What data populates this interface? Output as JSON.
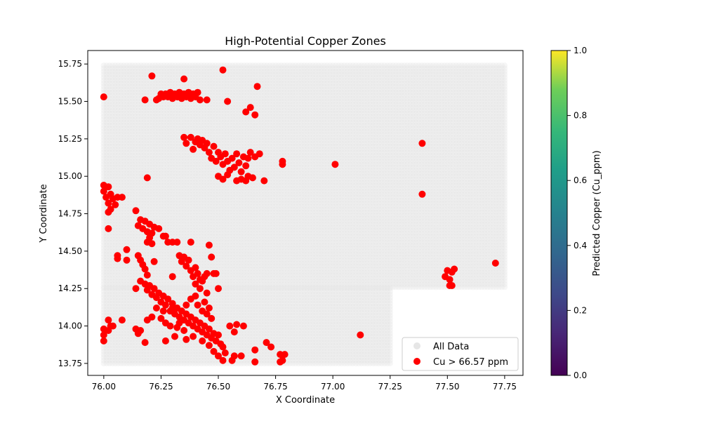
{
  "chart_data": {
    "type": "scatter",
    "title": "High-Potential Copper Zones",
    "xlabel": "X Coordinate",
    "ylabel": "Y Coordinate",
    "xlim": [
      75.93,
      77.83
    ],
    "ylim": [
      13.67,
      15.84
    ],
    "xticks": [
      "76.00",
      "76.25",
      "76.50",
      "76.75",
      "77.00",
      "77.25",
      "77.50",
      "77.75"
    ],
    "yticks": [
      "13.75",
      "14.00",
      "14.25",
      "14.50",
      "14.75",
      "15.00",
      "15.25",
      "15.50",
      "15.75"
    ],
    "grid": false,
    "legend": {
      "position": "lower-right",
      "entries": [
        {
          "label": "All Data",
          "color": "#e6e6e6"
        },
        {
          "label": "Cu > 66.57 ppm",
          "color": "#ff0000"
        }
      ]
    },
    "colorbar": {
      "label": "Predicted Copper (Cu_ppm)",
      "range": [
        0.0,
        1.0
      ],
      "ticks": [
        "0.0",
        "0.2",
        "0.4",
        "0.6",
        "0.8",
        "1.0"
      ],
      "colormap": "viridis"
    },
    "series": [
      {
        "name": "All Data",
        "color": "#e6e6e6",
        "kind": "grid",
        "regions": [
          {
            "x": [
              76.0,
              77.75
            ],
            "y": [
              14.26,
              15.75
            ]
          },
          {
            "x": [
              76.0,
              77.25
            ],
            "y": [
              13.75,
              14.26
            ]
          }
        ],
        "step": [
          0.0125,
          0.02
        ]
      },
      {
        "name": "Cu > 66.57 ppm",
        "color": "#ff0000",
        "kind": "points",
        "points": [
          [
            76.0,
            15.53
          ],
          [
            76.21,
            15.67
          ],
          [
            76.35,
            15.65
          ],
          [
            76.52,
            15.71
          ],
          [
            76.67,
            15.6
          ],
          [
            76.18,
            15.51
          ],
          [
            76.23,
            15.51
          ],
          [
            76.24,
            15.52
          ],
          [
            76.25,
            15.55
          ],
          [
            76.26,
            15.53
          ],
          [
            76.27,
            15.55
          ],
          [
            76.28,
            15.53
          ],
          [
            76.29,
            15.56
          ],
          [
            76.3,
            15.52
          ],
          [
            76.31,
            15.55
          ],
          [
            76.32,
            15.53
          ],
          [
            76.33,
            15.56
          ],
          [
            76.34,
            15.52
          ],
          [
            76.35,
            15.55
          ],
          [
            76.36,
            15.53
          ],
          [
            76.37,
            15.56
          ],
          [
            76.38,
            15.52
          ],
          [
            76.39,
            15.55
          ],
          [
            76.4,
            15.53
          ],
          [
            76.41,
            15.56
          ],
          [
            76.42,
            15.51
          ],
          [
            76.45,
            15.51
          ],
          [
            76.54,
            15.5
          ],
          [
            76.64,
            15.46
          ],
          [
            76.62,
            15.43
          ],
          [
            76.66,
            15.41
          ],
          [
            76.35,
            15.26
          ],
          [
            76.36,
            15.22
          ],
          [
            76.38,
            15.26
          ],
          [
            76.39,
            15.18
          ],
          [
            76.4,
            15.23
          ],
          [
            76.41,
            15.25
          ],
          [
            76.42,
            15.21
          ],
          [
            76.43,
            15.24
          ],
          [
            76.44,
            15.19
          ],
          [
            76.45,
            15.22
          ],
          [
            76.46,
            15.16
          ],
          [
            76.47,
            15.12
          ],
          [
            76.48,
            15.2
          ],
          [
            76.49,
            15.1
          ],
          [
            76.5,
            15.16
          ],
          [
            76.51,
            15.13
          ],
          [
            76.52,
            15.08
          ],
          [
            76.53,
            15.15
          ],
          [
            76.54,
            15.1
          ],
          [
            76.55,
            15.04
          ],
          [
            76.56,
            15.12
          ],
          [
            76.57,
            15.06
          ],
          [
            76.58,
            15.15
          ],
          [
            76.59,
            15.09
          ],
          [
            76.6,
            15.03
          ],
          [
            76.61,
            15.13
          ],
          [
            76.62,
            15.07
          ],
          [
            76.63,
            15.12
          ],
          [
            76.64,
            15.16
          ],
          [
            76.66,
            15.13
          ],
          [
            76.68,
            15.15
          ],
          [
            76.5,
            15.0
          ],
          [
            76.52,
            14.98
          ],
          [
            76.54,
            15.01
          ],
          [
            76.58,
            14.97
          ],
          [
            76.6,
            14.98
          ],
          [
            76.62,
            14.97
          ],
          [
            76.63,
            15.0
          ],
          [
            76.65,
            14.99
          ],
          [
            76.7,
            14.97
          ],
          [
            76.78,
            15.08
          ],
          [
            76.78,
            15.1
          ],
          [
            77.01,
            15.08
          ],
          [
            77.39,
            15.22
          ],
          [
            77.39,
            14.88
          ],
          [
            76.19,
            14.99
          ],
          [
            76.0,
            14.94
          ],
          [
            76.0,
            14.9
          ],
          [
            76.01,
            14.86
          ],
          [
            76.02,
            14.93
          ],
          [
            76.03,
            14.88
          ],
          [
            76.02,
            14.82
          ],
          [
            76.04,
            14.85
          ],
          [
            76.05,
            14.81
          ],
          [
            76.03,
            14.78
          ],
          [
            76.06,
            14.86
          ],
          [
            76.08,
            14.86
          ],
          [
            76.02,
            14.76
          ],
          [
            76.02,
            14.65
          ],
          [
            76.14,
            14.77
          ],
          [
            76.15,
            14.67
          ],
          [
            76.16,
            14.71
          ],
          [
            76.17,
            14.65
          ],
          [
            76.18,
            14.7
          ],
          [
            76.19,
            14.63
          ],
          [
            76.2,
            14.68
          ],
          [
            76.21,
            14.62
          ],
          [
            76.22,
            14.66
          ],
          [
            76.24,
            14.65
          ],
          [
            76.26,
            14.6
          ],
          [
            76.27,
            14.6
          ],
          [
            76.28,
            14.56
          ],
          [
            76.3,
            14.56
          ],
          [
            76.32,
            14.56
          ],
          [
            76.2,
            14.59
          ],
          [
            76.21,
            14.55
          ],
          [
            76.19,
            14.56
          ],
          [
            76.1,
            14.51
          ],
          [
            76.1,
            14.44
          ],
          [
            76.06,
            14.47
          ],
          [
            76.06,
            14.45
          ],
          [
            76.15,
            14.47
          ],
          [
            76.16,
            14.44
          ],
          [
            76.17,
            14.41
          ],
          [
            76.18,
            14.38
          ],
          [
            76.22,
            14.43
          ],
          [
            76.19,
            14.34
          ],
          [
            76.38,
            14.56
          ],
          [
            76.46,
            14.54
          ],
          [
            76.47,
            14.46
          ],
          [
            76.33,
            14.47
          ],
          [
            76.34,
            14.43
          ],
          [
            76.35,
            14.46
          ],
          [
            76.36,
            14.4
          ],
          [
            76.37,
            14.44
          ],
          [
            76.38,
            14.37
          ],
          [
            76.39,
            14.33
          ],
          [
            76.4,
            14.39
          ],
          [
            76.41,
            14.35
          ],
          [
            76.42,
            14.31
          ],
          [
            76.43,
            14.3
          ],
          [
            76.44,
            14.33
          ],
          [
            76.45,
            14.35
          ],
          [
            76.48,
            14.35
          ],
          [
            76.49,
            14.35
          ],
          [
            76.3,
            14.33
          ],
          [
            76.4,
            14.28
          ],
          [
            76.42,
            14.25
          ],
          [
            76.45,
            14.22
          ],
          [
            76.5,
            14.25
          ],
          [
            76.14,
            14.25
          ],
          [
            76.16,
            14.3
          ],
          [
            76.18,
            14.28
          ],
          [
            76.19,
            14.24
          ],
          [
            76.2,
            14.27
          ],
          [
            76.21,
            14.21
          ],
          [
            76.22,
            14.25
          ],
          [
            76.23,
            14.19
          ],
          [
            76.24,
            14.22
          ],
          [
            76.25,
            14.16
          ],
          [
            76.26,
            14.2
          ],
          [
            76.27,
            14.14
          ],
          [
            76.28,
            14.18
          ],
          [
            76.29,
            14.1
          ],
          [
            76.3,
            14.15
          ],
          [
            76.31,
            14.08
          ],
          [
            76.32,
            14.12
          ],
          [
            76.33,
            14.06
          ],
          [
            76.34,
            14.1
          ],
          [
            76.35,
            14.04
          ],
          [
            76.36,
            14.08
          ],
          [
            76.37,
            14.02
          ],
          [
            76.38,
            14.06
          ],
          [
            76.39,
            14.0
          ],
          [
            76.4,
            14.04
          ],
          [
            76.41,
            13.98
          ],
          [
            76.42,
            14.02
          ],
          [
            76.43,
            13.96
          ],
          [
            76.44,
            14.0
          ],
          [
            76.45,
            13.94
          ],
          [
            76.46,
            13.98
          ],
          [
            76.47,
            13.92
          ],
          [
            76.48,
            13.95
          ],
          [
            76.49,
            13.9
          ],
          [
            76.5,
            13.94
          ],
          [
            76.51,
            13.88
          ],
          [
            76.52,
            13.86
          ],
          [
            76.53,
            13.82
          ],
          [
            76.4,
            14.2
          ],
          [
            76.41,
            14.14
          ],
          [
            76.43,
            14.1
          ],
          [
            76.44,
            14.16
          ],
          [
            76.45,
            14.08
          ],
          [
            76.46,
            14.12
          ],
          [
            76.47,
            14.05
          ],
          [
            76.36,
            14.14
          ],
          [
            76.38,
            14.18
          ],
          [
            76.33,
            14.02
          ],
          [
            76.35,
            13.97
          ],
          [
            76.39,
            13.93
          ],
          [
            76.43,
            13.9
          ],
          [
            76.46,
            13.87
          ],
          [
            76.48,
            13.83
          ],
          [
            76.5,
            13.8
          ],
          [
            76.52,
            13.77
          ],
          [
            76.56,
            13.77
          ],
          [
            76.57,
            13.8
          ],
          [
            76.6,
            13.8
          ],
          [
            76.25,
            14.05
          ],
          [
            76.27,
            14.02
          ],
          [
            76.29,
            14.0
          ],
          [
            76.32,
            13.99
          ],
          [
            76.21,
            14.06
          ],
          [
            76.23,
            14.12
          ],
          [
            76.18,
            13.89
          ],
          [
            76.27,
            13.9
          ],
          [
            76.31,
            13.93
          ],
          [
            76.36,
            13.91
          ],
          [
            76.26,
            14.1
          ],
          [
            76.3,
            14.12
          ],
          [
            76.0,
            13.98
          ],
          [
            76.0,
            13.94
          ],
          [
            76.0,
            13.9
          ],
          [
            76.02,
            13.97
          ],
          [
            76.03,
            14.0
          ],
          [
            76.02,
            14.04
          ],
          [
            76.04,
            14.0
          ],
          [
            76.08,
            14.04
          ],
          [
            76.14,
            13.98
          ],
          [
            76.15,
            13.95
          ],
          [
            76.16,
            13.97
          ],
          [
            76.19,
            14.04
          ],
          [
            76.55,
            14.0
          ],
          [
            76.58,
            14.01
          ],
          [
            76.57,
            13.96
          ],
          [
            76.61,
            14.0
          ],
          [
            76.66,
            13.84
          ],
          [
            76.66,
            13.76
          ],
          [
            76.71,
            13.89
          ],
          [
            76.73,
            13.86
          ],
          [
            76.77,
            13.76
          ],
          [
            76.77,
            13.81
          ],
          [
            76.78,
            13.77
          ],
          [
            76.79,
            13.81
          ],
          [
            77.12,
            13.94
          ],
          [
            77.49,
            14.33
          ],
          [
            77.5,
            14.37
          ],
          [
            77.51,
            14.31
          ],
          [
            77.52,
            14.36
          ],
          [
            77.53,
            14.38
          ],
          [
            77.51,
            14.27
          ],
          [
            77.52,
            14.27
          ],
          [
            77.71,
            14.42
          ]
        ]
      }
    ]
  }
}
